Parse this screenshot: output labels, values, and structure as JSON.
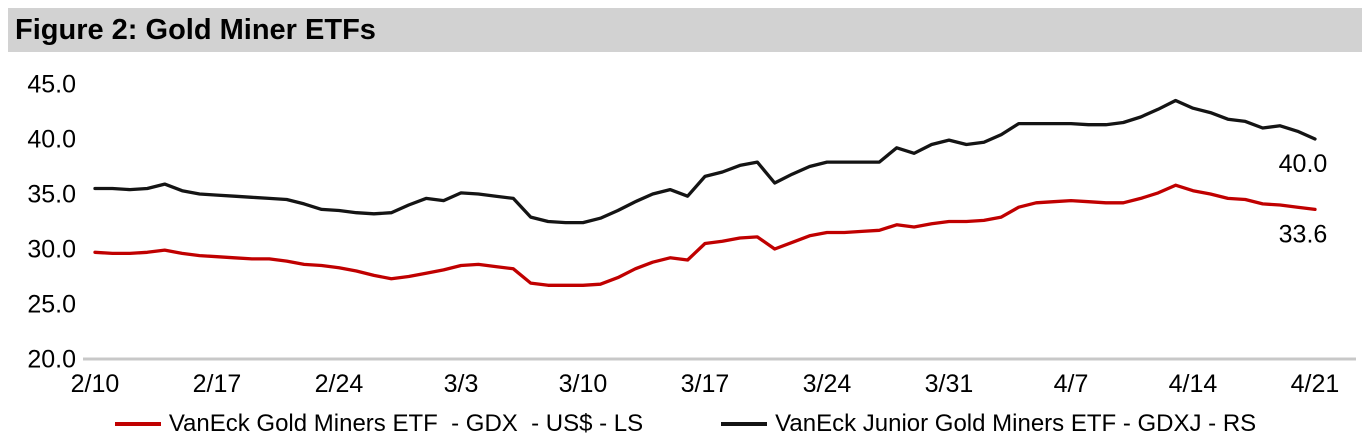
{
  "figure": {
    "title": "Figure 2: Gold Miner ETFs"
  },
  "colors": {
    "banner_bg": "#d2d2d2",
    "gdx_line": "#c00000",
    "gdxj_line": "#141414",
    "axis_line": "#c8c8c8",
    "text": "#000000"
  },
  "legend": [
    {
      "id": "gdx",
      "label": "VanEck Gold Miners ETF  - GDX  - US$ - LS",
      "color": "#c00000"
    },
    {
      "id": "gdxj",
      "label": "VanEck Junior Gold Miners ETF - GDXJ - RS",
      "color": "#141414"
    }
  ],
  "chart_data": {
    "type": "line",
    "title": "Figure 2: Gold Miner ETFs",
    "xlabel": "",
    "ylabel": "",
    "ylim": [
      20.0,
      45.0
    ],
    "y_ticks": [
      "20.0",
      "25.0",
      "30.0",
      "35.0",
      "40.0",
      "45.0"
    ],
    "grid": false,
    "legend_position": "bottom",
    "x_tick_labels": [
      "2/10",
      "2/17",
      "2/24",
      "3/3",
      "3/10",
      "3/17",
      "3/24",
      "3/31",
      "4/7",
      "4/14",
      "4/21"
    ],
    "x": [
      "2/10",
      "2/11",
      "2/12",
      "2/13",
      "2/14",
      "2/15",
      "2/16",
      "2/17",
      "2/18",
      "2/19",
      "2/20",
      "2/21",
      "2/22",
      "2/23",
      "2/24",
      "2/25",
      "2/26",
      "2/27",
      "2/28",
      "3/1",
      "3/2",
      "3/3",
      "3/4",
      "3/5",
      "3/6",
      "3/7",
      "3/8",
      "3/9",
      "3/10",
      "3/11",
      "3/12",
      "3/13",
      "3/14",
      "3/15",
      "3/16",
      "3/17",
      "3/18",
      "3/19",
      "3/20",
      "3/21",
      "3/22",
      "3/23",
      "3/24",
      "3/25",
      "3/26",
      "3/27",
      "3/28",
      "3/29",
      "3/30",
      "3/31",
      "4/1",
      "4/2",
      "4/3",
      "4/4",
      "4/5",
      "4/6",
      "4/7",
      "4/8",
      "4/9",
      "4/10",
      "4/11",
      "4/12",
      "4/13",
      "4/14",
      "4/15",
      "4/16",
      "4/17",
      "4/18",
      "4/19",
      "4/20",
      "4/21"
    ],
    "series": [
      {
        "id": "gdx",
        "name": "VanEck Gold Miners ETF  - GDX  - US$ - LS",
        "axis": "LS",
        "color": "#c00000",
        "end_label": "33.6",
        "values": [
          29.7,
          29.6,
          29.6,
          29.7,
          29.9,
          29.6,
          29.4,
          29.3,
          29.2,
          29.1,
          29.1,
          28.9,
          28.6,
          28.5,
          28.3,
          28.0,
          27.6,
          27.3,
          27.5,
          27.8,
          28.1,
          28.5,
          28.6,
          28.4,
          28.2,
          26.9,
          26.7,
          26.7,
          26.7,
          26.8,
          27.4,
          28.2,
          28.8,
          29.2,
          29.0,
          30.5,
          30.7,
          31.0,
          31.1,
          30.0,
          30.6,
          31.2,
          31.5,
          31.5,
          31.6,
          31.7,
          32.2,
          32.0,
          32.3,
          32.5,
          32.5,
          32.6,
          32.9,
          33.8,
          34.2,
          34.3,
          34.4,
          34.3,
          34.2,
          34.2,
          34.6,
          35.1,
          35.8,
          35.3,
          35.0,
          34.6,
          34.5,
          34.1,
          34.0,
          33.8,
          33.6
        ]
      },
      {
        "id": "gdxj",
        "name": "VanEck Junior Gold Miners ETF - GDXJ - RS",
        "axis": "RS",
        "color": "#141414",
        "end_label": "40.0",
        "values": [
          35.5,
          35.5,
          35.4,
          35.5,
          35.9,
          35.3,
          35.0,
          34.9,
          34.8,
          34.7,
          34.6,
          34.5,
          34.1,
          33.6,
          33.5,
          33.3,
          33.2,
          33.3,
          34.0,
          34.6,
          34.4,
          35.1,
          35.0,
          34.8,
          34.6,
          32.9,
          32.5,
          32.4,
          32.4,
          32.8,
          33.5,
          34.3,
          35.0,
          35.4,
          34.8,
          36.6,
          37.0,
          37.6,
          37.9,
          36.0,
          36.8,
          37.5,
          37.9,
          37.9,
          37.9,
          37.9,
          39.2,
          38.7,
          39.5,
          39.9,
          39.5,
          39.7,
          40.4,
          41.4,
          41.4,
          41.4,
          41.4,
          41.3,
          41.3,
          41.5,
          42.0,
          42.7,
          43.5,
          42.8,
          42.4,
          41.8,
          41.6,
          41.0,
          41.2,
          40.7,
          40.0
        ]
      }
    ]
  }
}
